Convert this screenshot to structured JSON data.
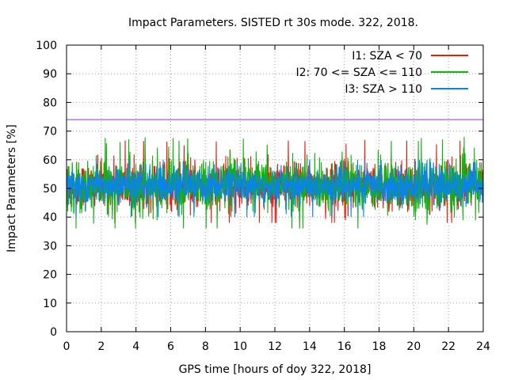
{
  "chart_data": {
    "type": "line",
    "title": "Impact Parameters. SISTED rt 30s mode. 322, 2018.",
    "xlabel": "GPS time [hours of doy 322, 2018]",
    "ylabel": "Impact Parameters [%]",
    "xlim": [
      0,
      24
    ],
    "ylim": [
      0,
      100
    ],
    "xticks": [
      0,
      2,
      4,
      6,
      8,
      10,
      12,
      14,
      16,
      18,
      20,
      22,
      24
    ],
    "yticks": [
      0,
      10,
      20,
      30,
      40,
      50,
      60,
      70,
      80,
      90,
      100
    ],
    "grid": true,
    "legend_position": "top-right",
    "reference_line": {
      "y": 74,
      "color": "#a020f0"
    },
    "series": [
      {
        "name": "I1: SZA < 70",
        "color": "#e51e10",
        "center": 51,
        "spread_low": 9,
        "spread_high": 9,
        "extremes": [
          38,
          67
        ]
      },
      {
        "name": "I2: 70 <= SZA <= 110",
        "color": "#12b012",
        "center": 51,
        "spread_low": 9,
        "spread_high": 10,
        "extremes": [
          36,
          68
        ]
      },
      {
        "name": "I3: SZA > 110",
        "color": "#0a84e6",
        "center": 51,
        "spread_low": 7,
        "spread_high": 7,
        "extremes": [
          40,
          60
        ]
      }
    ]
  }
}
